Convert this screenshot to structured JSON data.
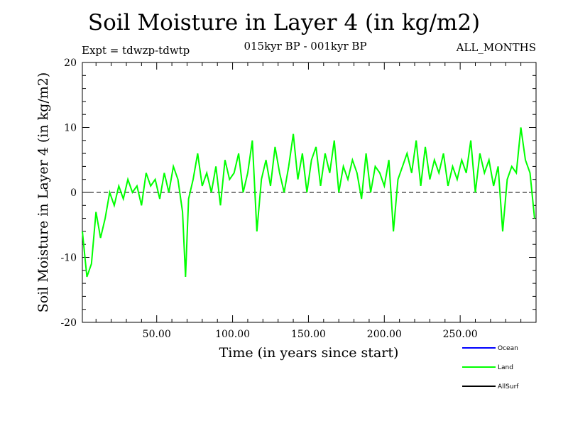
{
  "header": {
    "title": "Soil Moisture in Layer 4 (in kg/m2)",
    "expt": "Expt = tdwzp-tdwtp",
    "period": "015kyr BP - 001kyr BP",
    "months": "ALL_MONTHS"
  },
  "chart_data": {
    "type": "line",
    "title": "Soil Moisture in Layer 4 (in kg/m2)",
    "xlabel": "Time (in years since start)",
    "ylabel": "Soil Moisture in Layer 4 (in kg/m2)",
    "xlim": [
      1,
      300
    ],
    "ylim": [
      -20,
      20
    ],
    "x_ticks": [
      50,
      100,
      150,
      200,
      250
    ],
    "x_tick_labels": [
      "50.00",
      "100.00",
      "150.00",
      "200.00",
      "250.00"
    ],
    "y_ticks": [
      -20,
      -10,
      0,
      10,
      20
    ],
    "y_tick_labels": [
      "-20",
      "-10",
      "0",
      "10",
      "20"
    ],
    "zero_line": "dashed",
    "grid": false,
    "legend_position": "bottom-right",
    "legend": [
      {
        "name": "Ocean",
        "color": "#0000ff"
      },
      {
        "name": "Land",
        "color": "#00ff00"
      },
      {
        "name": "AllSurf",
        "color": "#000000"
      }
    ],
    "series": [
      {
        "name": "Land",
        "color": "#00ff00",
        "x": [
          1,
          4,
          7,
          10,
          13,
          16,
          19,
          22,
          25,
          28,
          31,
          34,
          37,
          40,
          43,
          46,
          49,
          52,
          55,
          58,
          61,
          64,
          67,
          69,
          71,
          74,
          77,
          80,
          83,
          86,
          89,
          92,
          95,
          98,
          101,
          104,
          107,
          110,
          113,
          116,
          119,
          122,
          125,
          128,
          131,
          134,
          137,
          140,
          143,
          146,
          149,
          152,
          155,
          158,
          161,
          164,
          167,
          170,
          173,
          176,
          179,
          182,
          185,
          188,
          191,
          194,
          197,
          200,
          203,
          206,
          209,
          212,
          215,
          218,
          221,
          224,
          227,
          230,
          233,
          236,
          239,
          242,
          245,
          248,
          251,
          254,
          257,
          260,
          263,
          266,
          269,
          272,
          275,
          278,
          281,
          284,
          287,
          290,
          293,
          296,
          299
        ],
        "y": [
          -6,
          -13,
          -11,
          -3,
          -7,
          -4,
          0,
          -2,
          1,
          -1,
          2,
          0,
          1,
          -2,
          3,
          1,
          2,
          -1,
          3,
          0,
          4,
          2,
          -3,
          -13,
          -1,
          2,
          6,
          1,
          3,
          0,
          4,
          -2,
          5,
          2,
          3,
          6,
          0,
          3,
          8,
          -6,
          2,
          5,
          1,
          7,
          3,
          0,
          4,
          9,
          2,
          6,
          0,
          5,
          7,
          1,
          6,
          3,
          8,
          0,
          4,
          2,
          5,
          3,
          -1,
          6,
          0,
          4,
          3,
          1,
          5,
          -6,
          2,
          4,
          6,
          3,
          8,
          1,
          7,
          2,
          5,
          3,
          6,
          1,
          4,
          2,
          5,
          3,
          8,
          0,
          6,
          3,
          5,
          1,
          4,
          -6,
          2,
          4,
          3,
          10,
          5,
          3,
          -4
        ]
      }
    ]
  }
}
